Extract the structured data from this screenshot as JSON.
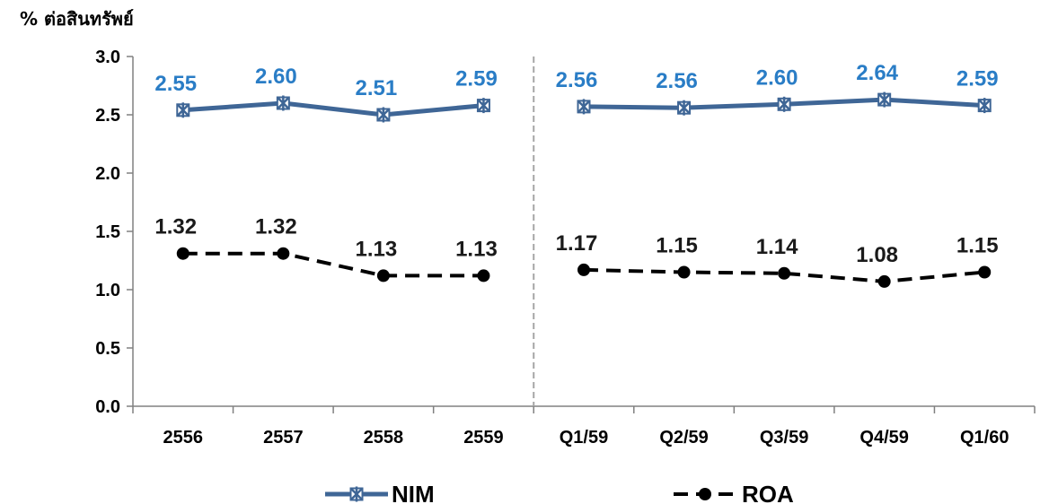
{
  "chart_data": {
    "type": "line",
    "ylabel": "% ต่อสินทรัพย์",
    "ylim": [
      0,
      3.0
    ],
    "yticks": [
      "0.0",
      "0.5",
      "1.0",
      "1.5",
      "2.0",
      "2.5",
      "3.0"
    ],
    "categories": [
      "2556",
      "2557",
      "2558",
      "2559",
      "Q1/59",
      "Q2/59",
      "Q3/59",
      "Q4/59",
      "Q1/60"
    ],
    "series": [
      {
        "name": "NIM",
        "color": "#3f6696",
        "label_color": "#2a7dc6",
        "marker": "asterisk-x",
        "line_style": "solid",
        "values": [
          2.55,
          2.6,
          2.51,
          2.59,
          2.56,
          2.56,
          2.6,
          2.64,
          2.59
        ],
        "labels": [
          "2.55",
          "2.60",
          "2.51",
          "2.59",
          "2.56",
          "2.56",
          "2.60",
          "2.64",
          "2.59"
        ],
        "display_values": [
          2.54,
          2.6,
          2.5,
          2.58,
          2.57,
          2.56,
          2.59,
          2.63,
          2.58
        ]
      },
      {
        "name": "ROA",
        "color": "#000000",
        "label_color": "#1a1a1a",
        "marker": "circle",
        "line_style": "dashed",
        "values": [
          1.32,
          1.32,
          1.13,
          1.13,
          1.17,
          1.15,
          1.14,
          1.08,
          1.15
        ],
        "labels": [
          "1.32",
          "1.32",
          "1.13",
          "1.13",
          "1.17",
          "1.15",
          "1.14",
          "1.08",
          "1.15"
        ],
        "display_values": [
          1.31,
          1.31,
          1.12,
          1.12,
          1.17,
          1.15,
          1.14,
          1.07,
          1.15
        ]
      }
    ],
    "divider_after_index": 3,
    "grid": false,
    "legend_position": "bottom"
  }
}
